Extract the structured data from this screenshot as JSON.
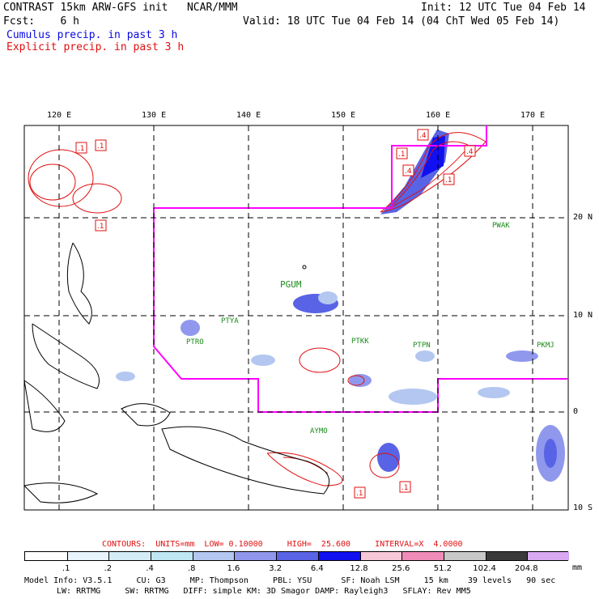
{
  "header": {
    "title": "CONTRAST 15km ARW-GFS init   NCAR/MMM",
    "fcst": "Fcst:    6 h",
    "init": "Init: 12 UTC Tue 04 Feb 14",
    "valid": "Valid: 18 UTC Tue 04 Feb 14 (04 ChT Wed 05 Feb 14)",
    "legend_cu": "Cumulus precip. in past 3 h",
    "legend_ex": "Explicit precip. in past 3 h"
  },
  "map": {
    "lon_labels": [
      "120 E",
      "130 E",
      "140 E",
      "150 E",
      "160 E",
      "170 E"
    ],
    "lat_labels": [
      "20 N",
      "10 N",
      "0",
      "10 S"
    ],
    "stations": [
      "PWAK",
      "PGUM",
      "PTYA",
      "PTRO",
      "PTKK",
      "PTPN",
      "PKMJ",
      "AYMO"
    ]
  },
  "contour_info": "CONTOURS:  UNITS=mm  LOW= 0.10000     HIGH=  25.600     INTERVAL=X  4.0000",
  "colorbar": {
    "units": "mm",
    "labels": [
      ".1",
      ".2",
      ".4",
      ".8",
      "1.6",
      "3.2",
      "6.4",
      "12.8",
      "25.6",
      "51.2",
      "102.4",
      "204.8"
    ],
    "colors": [
      "#ffffff",
      "#e8f4fb",
      "#d4ecf6",
      "#bfe6f3",
      "#b3c7f0",
      "#8f98ec",
      "#5963e6",
      "#1010f0",
      "#f6c8d8",
      "#f08cb8",
      "#c8c8c8",
      "#3a3a3a",
      "#d8a8f0"
    ]
  },
  "model_info": {
    "line1": "Model Info: V3.5.1     CU: G3     MP: Thompson     PBL: YSU      SF: Noah LSM     15 km    39 levels   90 sec",
    "line2": "LW: RRTMG     SW: RRTMG   DIFF: simple KM: 3D Smagor DAMP: Rayleigh3   SFLAY: Rev MM5"
  }
}
